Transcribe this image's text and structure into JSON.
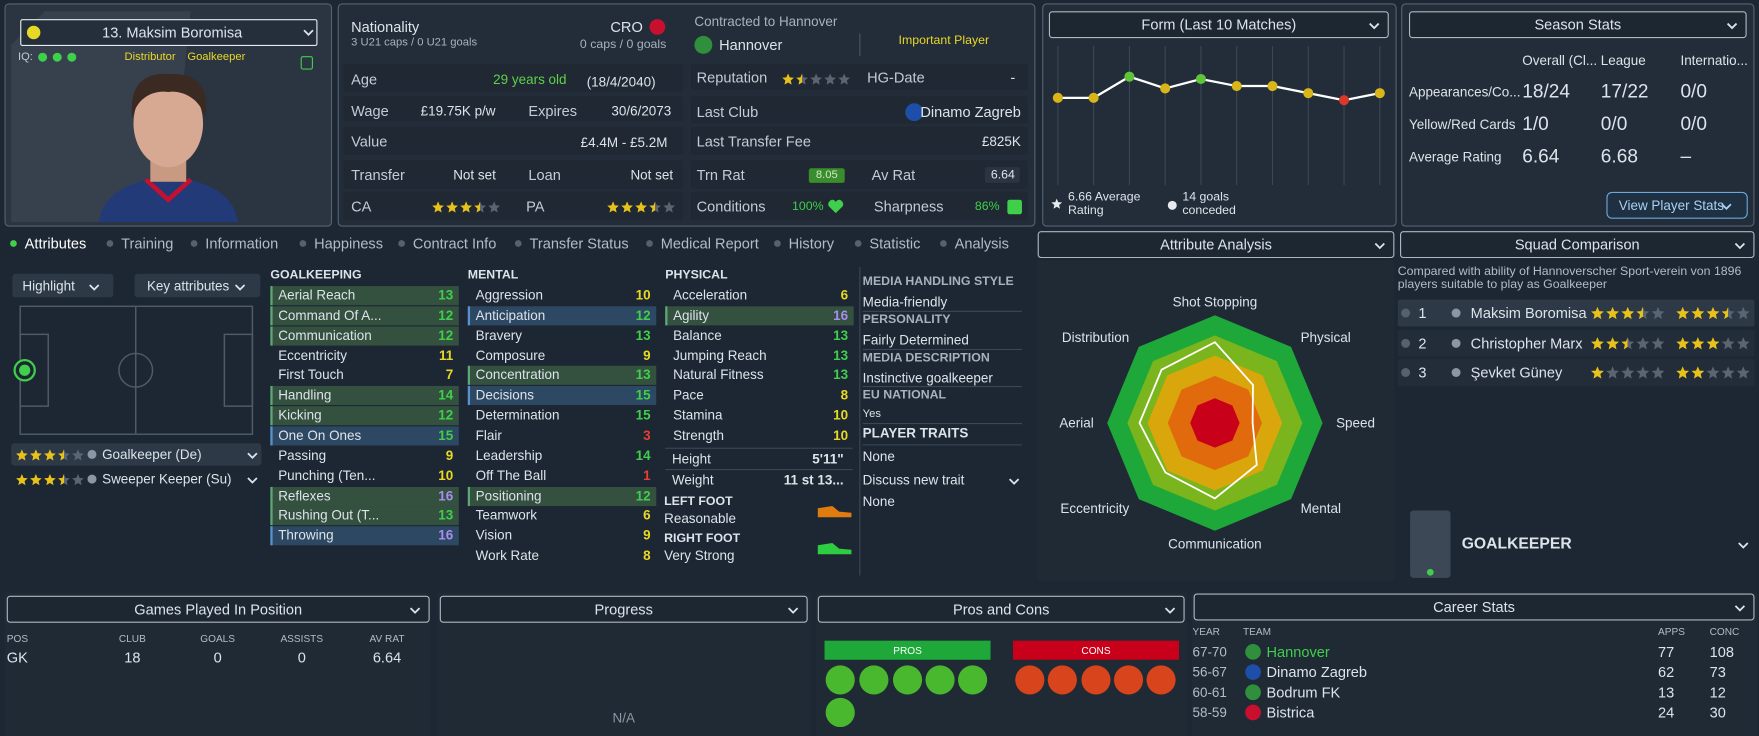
{
  "profile": {
    "name": "13. Maksim Boromisa",
    "iq_label": "IQ:",
    "role": "Distributor",
    "position": "Goalkeeper"
  },
  "nationality": {
    "label": "Nationality",
    "code": "CRO",
    "u21": "3 U21 caps / 0 U21 goals",
    "caps": "0 caps / 0 goals"
  },
  "info": {
    "age_label": "Age",
    "age": "29 years old",
    "dob": "(18/4/2040)",
    "wage_label": "Wage",
    "wage": "£19.75K p/w",
    "expires_label": "Expires",
    "expires": "30/6/2073",
    "value_label": "Value",
    "value": "£4.4M - £5.2M",
    "transfer_label": "Transfer",
    "transfer": "Not set",
    "loan_label": "Loan",
    "loan": "Not set",
    "ca_label": "CA",
    "ca_stars": 3.5,
    "pa_label": "PA",
    "pa_stars": 3.5
  },
  "contract": {
    "title": "Contracted to Hannover",
    "club": "Hannover",
    "status": "Important Player",
    "reputation_label": "Reputation",
    "reputation_stars": 1.5,
    "hg_label": "HG-Date",
    "hg": "-",
    "last_club_label": "Last Club",
    "last_club": "Dinamo Zagreb",
    "fee_label": "Last Transfer Fee",
    "fee": "£825K",
    "trn_label": "Trn Rat",
    "trn": 8.05,
    "av_label": "Av Rat",
    "av": 6.64,
    "conditions_label": "Conditions",
    "conditions": "100%",
    "sharpness_label": "Sharpness",
    "sharpness": "86%"
  },
  "form": {
    "type": "line",
    "title": "Form (Last 10 Matches)",
    "values": [
      6.3,
      6.3,
      7.2,
      6.7,
      7.1,
      6.8,
      6.8,
      6.5,
      6.2,
      6.5
    ],
    "colors": [
      "#d9b51a",
      "#d9b51a",
      "#5fc43a",
      "#d9b51a",
      "#5fc43a",
      "#d9b51a",
      "#d9b51a",
      "#d9b51a",
      "#d83a2a",
      "#d9b51a"
    ],
    "ylim": [
      1.5,
      8.5
    ],
    "line_color": "#ffffff",
    "avg_text": "6.66 Average Rating",
    "conceded_text": "14 goals conceded"
  },
  "season": {
    "title": "Season Stats",
    "columns": [
      "Overall (Cl...",
      "League",
      "Internatio..."
    ],
    "rows": [
      {
        "label": "Appearances/Co...",
        "values": [
          "18/24",
          "17/22",
          "0/0"
        ]
      },
      {
        "label": "Yellow/Red Cards",
        "values": [
          "1/0",
          "0/0",
          "0/0"
        ]
      },
      {
        "label": "Average Rating",
        "values": [
          "6.64",
          "6.68",
          "–"
        ]
      }
    ],
    "button": "View Player Stats"
  },
  "tabs": [
    "Attributes",
    "Training",
    "Information",
    "Happiness",
    "Contract Info",
    "Transfer Status",
    "Medical Report",
    "History",
    "Statistic",
    "Analysis"
  ],
  "active_tab": 0,
  "left": {
    "highlight": "Highlight",
    "key_attributes": "Key attributes",
    "roles": [
      {
        "name": "Goalkeeper (De)",
        "stars": 3.5
      },
      {
        "name": "Sweeper Keeper (Su)",
        "stars": 3.5
      }
    ]
  },
  "attributes": [
    {
      "title": "GOALKEEPING",
      "rows": [
        {
          "name": "Aerial Reach",
          "value": 13,
          "highlight": "#34503f"
        },
        {
          "name": "Command Of A...",
          "value": 12,
          "highlight": "#34503f"
        },
        {
          "name": "Communication",
          "value": 12,
          "highlight": "#34503f"
        },
        {
          "name": "Eccentricity",
          "value": 11
        },
        {
          "name": "First Touch",
          "value": 7
        },
        {
          "name": "Handling",
          "value": 14,
          "highlight": "#34503f"
        },
        {
          "name": "Kicking",
          "value": 12,
          "highlight": "#34503f"
        },
        {
          "name": "One On Ones",
          "value": 15,
          "highlight": "#2d4862"
        },
        {
          "name": "Passing",
          "value": 9
        },
        {
          "name": "Punching (Ten...",
          "value": 10
        },
        {
          "name": "Reflexes",
          "value": 16,
          "highlight": "#34503f"
        },
        {
          "name": "Rushing Out (T...",
          "value": 13,
          "highlight": "#34503f"
        },
        {
          "name": "Throwing",
          "value": 16,
          "highlight": "#2d4862"
        }
      ]
    },
    {
      "title": "MENTAL",
      "rows": [
        {
          "name": "Aggression",
          "value": 10
        },
        {
          "name": "Anticipation",
          "value": 12,
          "highlight": "#2d4862"
        },
        {
          "name": "Bravery",
          "value": 13
        },
        {
          "name": "Composure",
          "value": 9
        },
        {
          "name": "Concentration",
          "value": 13,
          "highlight": "#34503f"
        },
        {
          "name": "Decisions",
          "value": 15,
          "highlight": "#2d4862"
        },
        {
          "name": "Determination",
          "value": 15
        },
        {
          "name": "Flair",
          "value": 3
        },
        {
          "name": "Leadership",
          "value": 14
        },
        {
          "name": "Off The Ball",
          "value": 1
        },
        {
          "name": "Positioning",
          "value": 12,
          "highlight": "#34503f"
        },
        {
          "name": "Teamwork",
          "value": 6
        },
        {
          "name": "Vision",
          "value": 9
        },
        {
          "name": "Work Rate",
          "value": 8
        }
      ]
    },
    {
      "title": "PHYSICAL",
      "rows": [
        {
          "name": "Acceleration",
          "value": 6
        },
        {
          "name": "Agility",
          "value": 16,
          "highlight": "#34503f"
        },
        {
          "name": "Balance",
          "value": 13
        },
        {
          "name": "Jumping Reach",
          "value": 13
        },
        {
          "name": "Natural Fitness",
          "value": 13
        },
        {
          "name": "Pace",
          "value": 8
        },
        {
          "name": "Stamina",
          "value": 10
        },
        {
          "name": "Strength",
          "value": 10
        }
      ]
    }
  ],
  "physique": [
    {
      "label": "Height",
      "value": "5'11\""
    },
    {
      "label": "Weight",
      "value": "11 st 13..."
    }
  ],
  "feet": [
    {
      "label": "LEFT FOOT",
      "value": "Reasonable",
      "color": "#e07b10"
    },
    {
      "label": "RIGHT FOOT",
      "value": "Very Strong",
      "color": "#2ecc40"
    }
  ],
  "media": {
    "items": [
      {
        "heading": "MEDIA HANDLING STYLE",
        "value": "Media-friendly"
      },
      {
        "heading": "PERSONALITY",
        "value": "Fairly Determined"
      },
      {
        "heading": "MEDIA DESCRIPTION",
        "value": "Instinctive goalkeeper"
      },
      {
        "heading": "EU NATIONAL",
        "value": "Yes"
      },
      {
        "heading": "PLAYER TRAITS",
        "value": "None"
      }
    ],
    "discuss": "Discuss new trait",
    "discuss_value": "None"
  },
  "analysis": {
    "type": "radar",
    "title": "Attribute Analysis",
    "categories": [
      "Shot Stopping",
      "Physical",
      "Speed",
      "Mental",
      "Communication",
      "Eccentricity",
      "Aerial",
      "Distribution"
    ],
    "values": [
      15,
      10,
      7,
      11,
      14,
      13,
      14,
      14
    ],
    "rlim": [
      0,
      20
    ]
  },
  "squad": {
    "title": "Squad Comparison",
    "note": "Compared with ability of Hannoverscher Sport-verein von 1896 players suitable to play as Goalkeeper",
    "rows": [
      {
        "rank": 1,
        "name": "Maksim Boromisa",
        "ca": 3.5,
        "pa": 3.5
      },
      {
        "rank": 2,
        "name": "Christopher Marx",
        "ca": 2.5,
        "pa": 3
      },
      {
        "rank": 3,
        "name": "Şevket Güney",
        "ca": 1,
        "pa": 2
      }
    ],
    "position": "GOALKEEPER"
  },
  "games": {
    "title": "Games Played In Position",
    "columns": [
      "POS",
      "CLUB",
      "GOALS",
      "ASSISTS",
      "AV RAT"
    ],
    "rows": [
      [
        "GK",
        18,
        0,
        0,
        6.64
      ]
    ]
  },
  "progress": {
    "title": "Progress",
    "empty": "N/A"
  },
  "pros_cons": {
    "title": "Pros and Cons",
    "pros": "PROS",
    "cons": "CONS"
  },
  "career": {
    "title": "Career Stats",
    "columns": [
      "YEAR",
      "TEAM",
      "APPS",
      "CONC"
    ],
    "rows": [
      [
        "67-70",
        "Hannover",
        77,
        108
      ],
      [
        "56-67",
        "Dinamo Zagreb",
        62,
        73
      ],
      [
        "60-61",
        "Bodrum FK",
        13,
        12
      ],
      [
        "58-59",
        "Bistrica",
        24,
        30
      ]
    ]
  }
}
